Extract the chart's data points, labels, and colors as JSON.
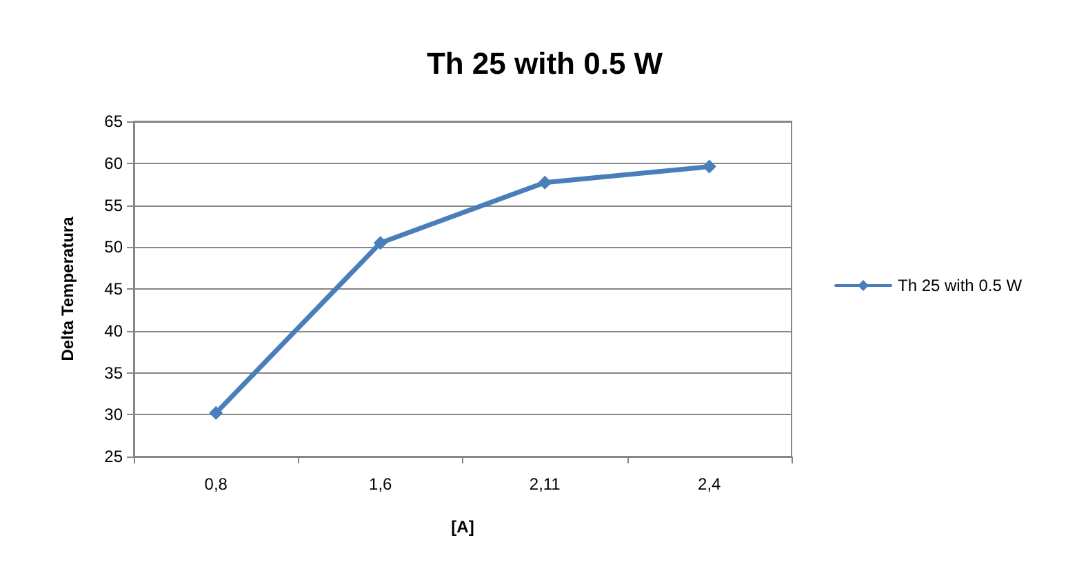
{
  "chart_data": {
    "type": "line",
    "title": "Th 25 with 0.5 W",
    "xlabel": "[A]",
    "ylabel": "Delta Temperatura",
    "categories": [
      "0,8",
      "1,6",
      "2,11",
      "2,4"
    ],
    "series": [
      {
        "name": "Th 25 with 0.5 W",
        "color": "#4a7ebb",
        "values": [
          30.2,
          50.5,
          57.7,
          59.6
        ]
      }
    ],
    "ylim": [
      25,
      65
    ],
    "yticks": [
      25,
      30,
      35,
      40,
      45,
      50,
      55,
      60,
      65
    ],
    "grid": "y",
    "legend": "right",
    "marker": "diamond",
    "line_style": "solid"
  }
}
